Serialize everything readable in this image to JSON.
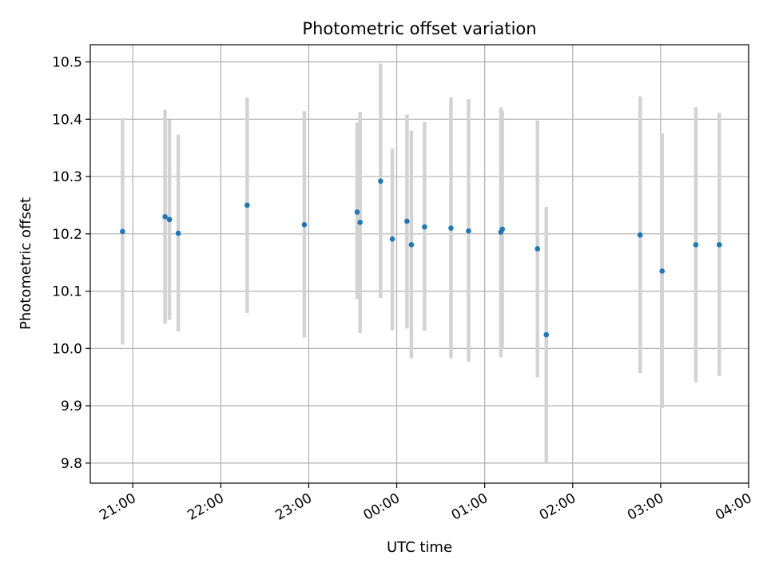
{
  "chart_data": {
    "type": "scatter",
    "title": "Photometric offset variation",
    "xlabel": "UTC time",
    "ylabel": "Photometric offset",
    "xlim": [
      "20:31",
      "04:00"
    ],
    "ylim": [
      9.765,
      10.53
    ],
    "x_ticks": [
      "21:00",
      "22:00",
      "23:00",
      "00:00",
      "01:00",
      "02:00",
      "03:00",
      "04:00"
    ],
    "y_ticks": [
      "9.8",
      "9.9",
      "10.0",
      "10.1",
      "10.2",
      "10.3",
      "10.4",
      "10.5"
    ],
    "grid": true,
    "colors": {
      "point": "#1f77b4",
      "errorbar": "#d3d3d3",
      "grid": "#b0b0b0"
    },
    "series": [
      {
        "points": [
          {
            "x": "20:53",
            "y": 10.204,
            "ylow": 10.007,
            "yhigh": 10.402
          },
          {
            "x": "21:22",
            "y": 10.23,
            "ylow": 10.043,
            "yhigh": 10.416
          },
          {
            "x": "21:25",
            "y": 10.225,
            "ylow": 10.05,
            "yhigh": 10.399
          },
          {
            "x": "21:31",
            "y": 10.201,
            "ylow": 10.03,
            "yhigh": 10.373
          },
          {
            "x": "22:18",
            "y": 10.25,
            "ylow": 10.062,
            "yhigh": 10.438
          },
          {
            "x": "22:57",
            "y": 10.216,
            "ylow": 10.019,
            "yhigh": 10.414
          },
          {
            "x": "23:33",
            "y": 10.238,
            "ylow": 10.086,
            "yhigh": 10.394
          },
          {
            "x": "23:35",
            "y": 10.22,
            "ylow": 10.027,
            "yhigh": 10.413
          },
          {
            "x": "23:49",
            "y": 10.292,
            "ylow": 10.088,
            "yhigh": 10.497
          },
          {
            "x": "23:57",
            "y": 10.191,
            "ylow": 10.032,
            "yhigh": 10.349
          },
          {
            "x": "00:07",
            "y": 10.222,
            "ylow": 10.035,
            "yhigh": 10.408
          },
          {
            "x": "00:10",
            "y": 10.181,
            "ylow": 9.983,
            "yhigh": 10.38
          },
          {
            "x": "00:19",
            "y": 10.212,
            "ylow": 10.031,
            "yhigh": 10.395
          },
          {
            "x": "00:37",
            "y": 10.21,
            "ylow": 9.983,
            "yhigh": 10.438
          },
          {
            "x": "00:49",
            "y": 10.205,
            "ylow": 9.977,
            "yhigh": 10.435
          },
          {
            "x": "01:11",
            "y": 10.203,
            "ylow": 9.985,
            "yhigh": 10.421
          },
          {
            "x": "01:12",
            "y": 10.208,
            "ylow": 10.0,
            "yhigh": 10.415
          },
          {
            "x": "01:36",
            "y": 10.174,
            "ylow": 9.95,
            "yhigh": 10.398
          },
          {
            "x": "01:42",
            "y": 10.024,
            "ylow": 9.8,
            "yhigh": 10.247
          },
          {
            "x": "02:46",
            "y": 10.198,
            "ylow": 9.957,
            "yhigh": 10.44
          },
          {
            "x": "03:01",
            "y": 10.135,
            "ylow": 9.896,
            "yhigh": 10.375
          },
          {
            "x": "03:24",
            "y": 10.181,
            "ylow": 9.941,
            "yhigh": 10.421
          },
          {
            "x": "03:40",
            "y": 10.181,
            "ylow": 9.952,
            "yhigh": 10.411
          }
        ]
      }
    ]
  }
}
